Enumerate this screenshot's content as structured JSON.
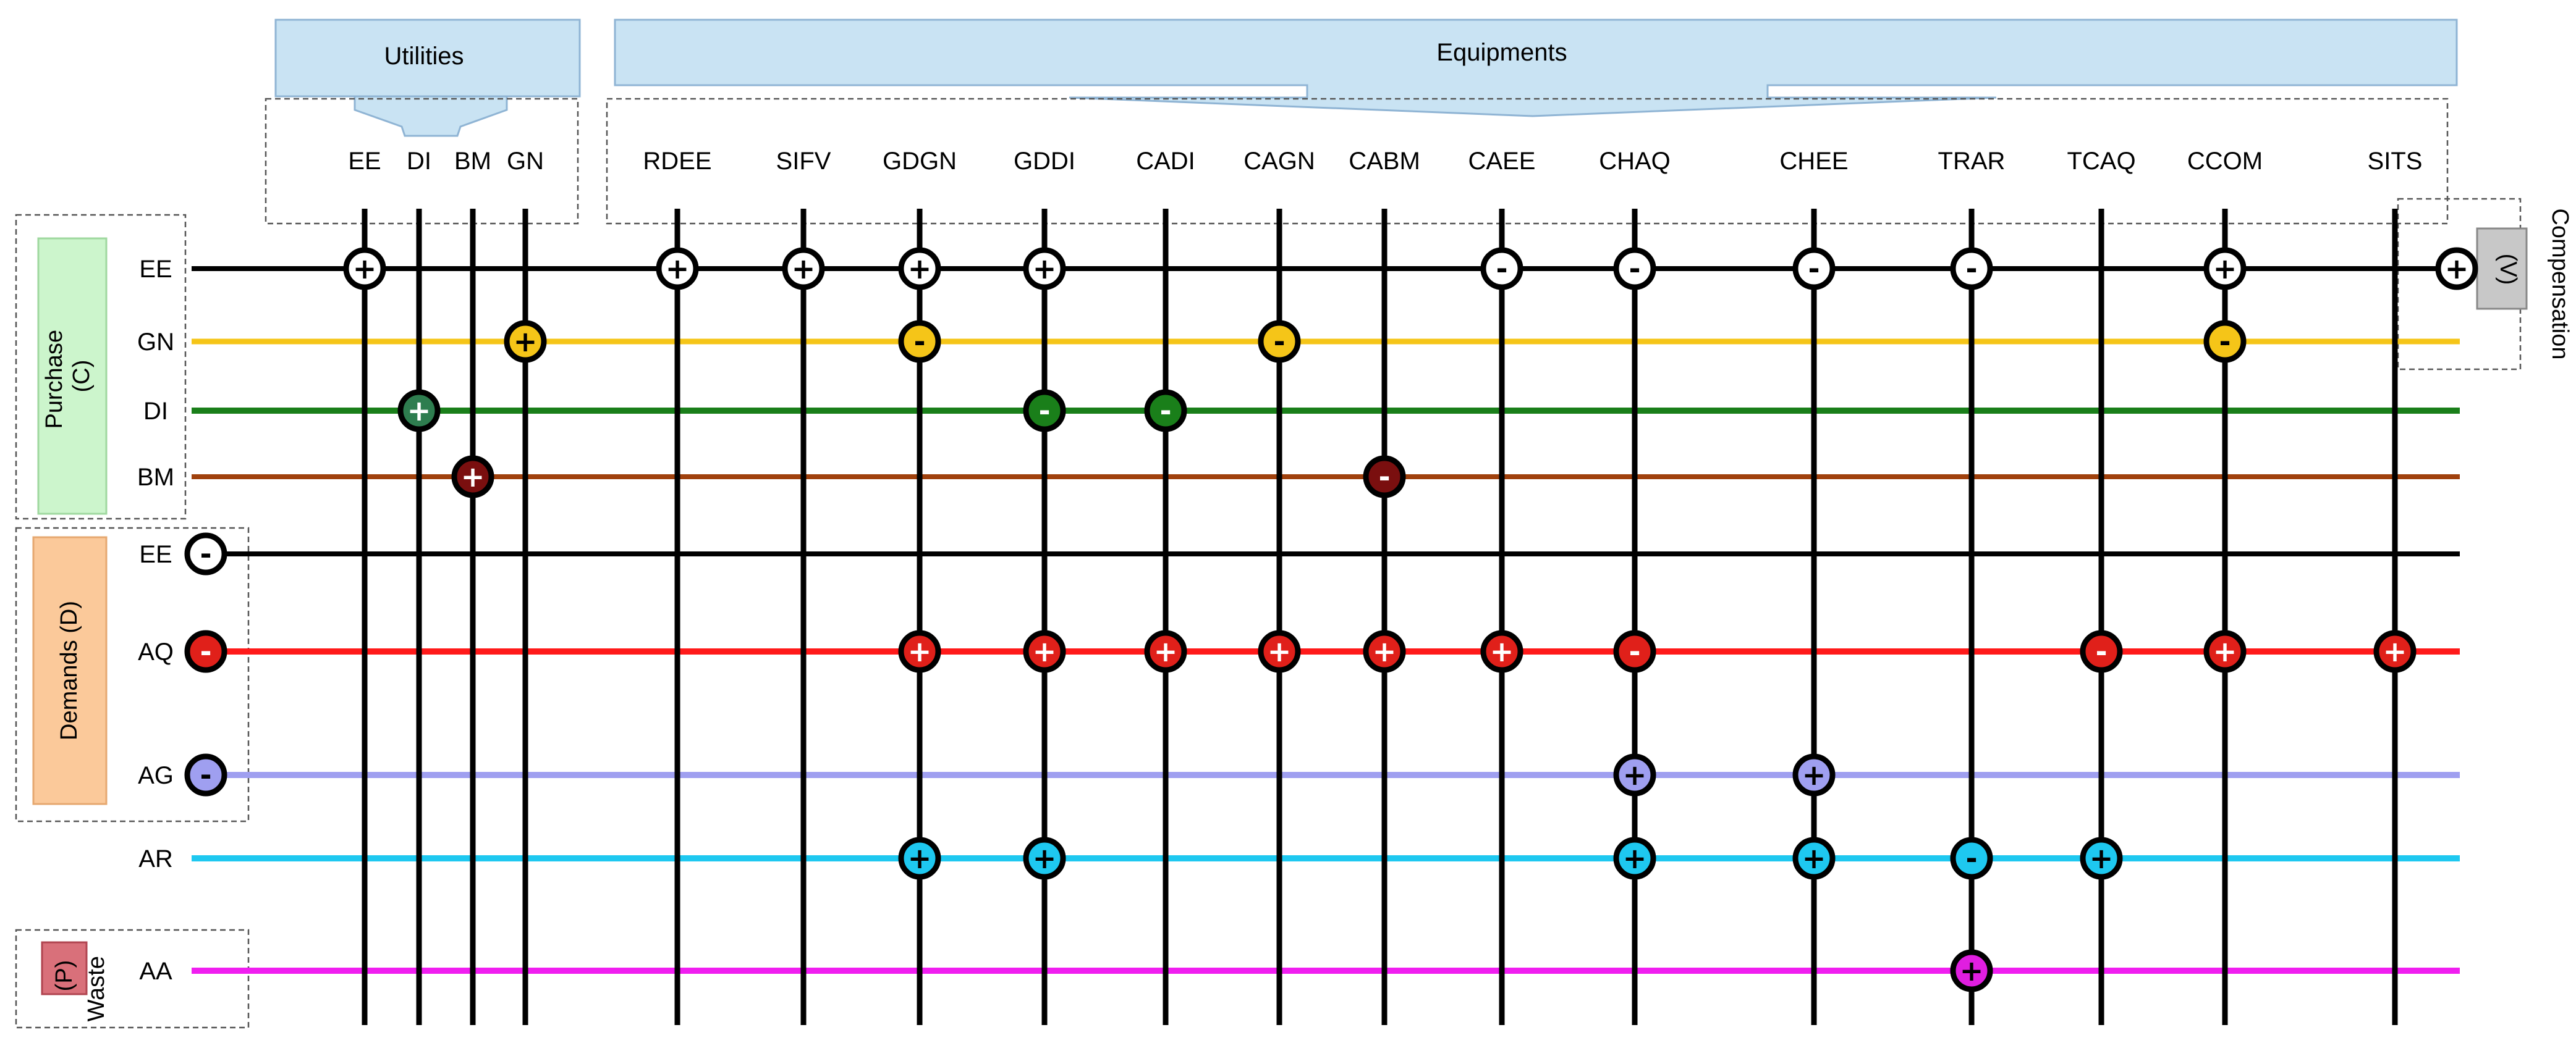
{
  "headers": {
    "utilities": "Utilities",
    "equipments": "Equipments"
  },
  "columns": [
    {
      "id": "EE",
      "label": "EE",
      "group": "utilities"
    },
    {
      "id": "DI",
      "label": "DI",
      "group": "utilities"
    },
    {
      "id": "BM",
      "label": "BM",
      "group": "utilities"
    },
    {
      "id": "GN",
      "label": "GN",
      "group": "utilities"
    },
    {
      "id": "RDEE",
      "label": "RDEE",
      "group": "equipments"
    },
    {
      "id": "SIFV",
      "label": "SIFV",
      "group": "equipments"
    },
    {
      "id": "GDGN",
      "label": "GDGN",
      "group": "equipments"
    },
    {
      "id": "GDDI",
      "label": "GDDI",
      "group": "equipments"
    },
    {
      "id": "CADI",
      "label": "CADI",
      "group": "equipments"
    },
    {
      "id": "CAGN",
      "label": "CAGN",
      "group": "equipments"
    },
    {
      "id": "CABM",
      "label": "CABM",
      "group": "equipments"
    },
    {
      "id": "CAEE",
      "label": "CAEE",
      "group": "equipments"
    },
    {
      "id": "CHAQ",
      "label": "CHAQ",
      "group": "equipments"
    },
    {
      "id": "CHEE",
      "label": "CHEE",
      "group": "equipments"
    },
    {
      "id": "TRAR",
      "label": "TRAR",
      "group": "equipments"
    },
    {
      "id": "TCAQ",
      "label": "TCAQ",
      "group": "equipments"
    },
    {
      "id": "CCOM",
      "label": "CCOM",
      "group": "equipments"
    },
    {
      "id": "SITS",
      "label": "SITS",
      "group": "equipments"
    }
  ],
  "row_groups": {
    "purchase": "Purchase\n(C)",
    "purchase_line1": "Purchase",
    "purchase_line2": "(C)",
    "demands": "Demands (D)",
    "waste_line1": "Waste",
    "waste_line2": "(P)",
    "compensation_line1": "Compensation",
    "compensation_line2": "(V)"
  },
  "rows": [
    {
      "id": "C_EE",
      "label": "EE",
      "group": "purchase",
      "color": "#000000"
    },
    {
      "id": "C_GN",
      "label": "GN",
      "group": "purchase",
      "color": "#f5c518"
    },
    {
      "id": "C_DI",
      "label": "DI",
      "group": "purchase",
      "color": "#1a7f1a"
    },
    {
      "id": "C_BM",
      "label": "BM",
      "group": "purchase",
      "color": "#a0410d"
    },
    {
      "id": "D_EE",
      "label": "EE",
      "group": "demands",
      "color": "#000000"
    },
    {
      "id": "D_AQ",
      "label": "AQ",
      "group": "demands",
      "color": "#ff1a1a"
    },
    {
      "id": "D_AG",
      "label": "AG",
      "group": "demands",
      "color": "#9f9ff0"
    },
    {
      "id": "D_AR",
      "label": "AR",
      "group": "demands",
      "color": "#1ec8f0"
    },
    {
      "id": "P_AA",
      "label": "AA",
      "group": "waste",
      "color": "#f01ef0"
    }
  ],
  "node_fill": {
    "C_EE": "#ffffff",
    "C_GN": "#f5c518",
    "C_DI": "#2e7d4f",
    "C_DI_equip": "#1a7f1a",
    "C_BM": "#7a0f0f",
    "D_EE": "#ffffff",
    "D_AQ": "#e0201a",
    "D_AG": "#9f9ff0",
    "D_AR": "#1ec8f0",
    "P_AA": "#e01ee0"
  },
  "connections": [
    {
      "row": "C_EE",
      "col": "EE",
      "sign": "+"
    },
    {
      "row": "C_EE",
      "col": "RDEE",
      "sign": "+"
    },
    {
      "row": "C_EE",
      "col": "SIFV",
      "sign": "+"
    },
    {
      "row": "C_EE",
      "col": "GDGN",
      "sign": "+"
    },
    {
      "row": "C_EE",
      "col": "GDDI",
      "sign": "+"
    },
    {
      "row": "C_EE",
      "col": "CAEE",
      "sign": "-"
    },
    {
      "row": "C_EE",
      "col": "CHAQ",
      "sign": "-"
    },
    {
      "row": "C_EE",
      "col": "CHEE",
      "sign": "-"
    },
    {
      "row": "C_EE",
      "col": "TRAR",
      "sign": "-"
    },
    {
      "row": "C_EE",
      "col": "CCOM",
      "sign": "+"
    },
    {
      "row": "C_EE",
      "col": "COMP",
      "sign": "+"
    },
    {
      "row": "C_GN",
      "col": "GN",
      "sign": "+"
    },
    {
      "row": "C_GN",
      "col": "GDGN",
      "sign": "-"
    },
    {
      "row": "C_GN",
      "col": "CAGN",
      "sign": "-"
    },
    {
      "row": "C_GN",
      "col": "CCOM",
      "sign": "-"
    },
    {
      "row": "C_DI",
      "col": "DI",
      "sign": "+"
    },
    {
      "row": "C_DI",
      "col": "GDDI",
      "sign": "-"
    },
    {
      "row": "C_DI",
      "col": "CADI",
      "sign": "-"
    },
    {
      "row": "C_BM",
      "col": "BM",
      "sign": "+"
    },
    {
      "row": "C_BM",
      "col": "CABM",
      "sign": "-"
    },
    {
      "row": "D_EE",
      "col": "DEM",
      "sign": "-"
    },
    {
      "row": "D_AQ",
      "col": "DEM",
      "sign": "-"
    },
    {
      "row": "D_AQ",
      "col": "GDGN",
      "sign": "+"
    },
    {
      "row": "D_AQ",
      "col": "GDDI",
      "sign": "+"
    },
    {
      "row": "D_AQ",
      "col": "CADI",
      "sign": "+"
    },
    {
      "row": "D_AQ",
      "col": "CAGN",
      "sign": "+"
    },
    {
      "row": "D_AQ",
      "col": "CABM",
      "sign": "+"
    },
    {
      "row": "D_AQ",
      "col": "CAEE",
      "sign": "+"
    },
    {
      "row": "D_AQ",
      "col": "CHAQ",
      "sign": "-"
    },
    {
      "row": "D_AQ",
      "col": "TCAQ",
      "sign": "-"
    },
    {
      "row": "D_AQ",
      "col": "CCOM",
      "sign": "+"
    },
    {
      "row": "D_AQ",
      "col": "SITS",
      "sign": "+"
    },
    {
      "row": "D_AG",
      "col": "DEM",
      "sign": "-"
    },
    {
      "row": "D_AG",
      "col": "CHAQ",
      "sign": "+"
    },
    {
      "row": "D_AG",
      "col": "CHEE",
      "sign": "+"
    },
    {
      "row": "D_AR",
      "col": "GDGN",
      "sign": "+"
    },
    {
      "row": "D_AR",
      "col": "GDDI",
      "sign": "+"
    },
    {
      "row": "D_AR",
      "col": "CHAQ",
      "sign": "+"
    },
    {
      "row": "D_AR",
      "col": "CHEE",
      "sign": "+"
    },
    {
      "row": "D_AR",
      "col": "TRAR",
      "sign": "-"
    },
    {
      "row": "D_AR",
      "col": "TCAQ",
      "sign": "+"
    },
    {
      "row": "P_AA",
      "col": "TRAR",
      "sign": "+"
    }
  ],
  "colors": {
    "utilities_box": "#c9e3f3",
    "purchase_box": "#ccf5cc",
    "demands_box": "#fbc99a",
    "waste_box": "#d9707a",
    "compensation_box": "#c8c8c8"
  }
}
